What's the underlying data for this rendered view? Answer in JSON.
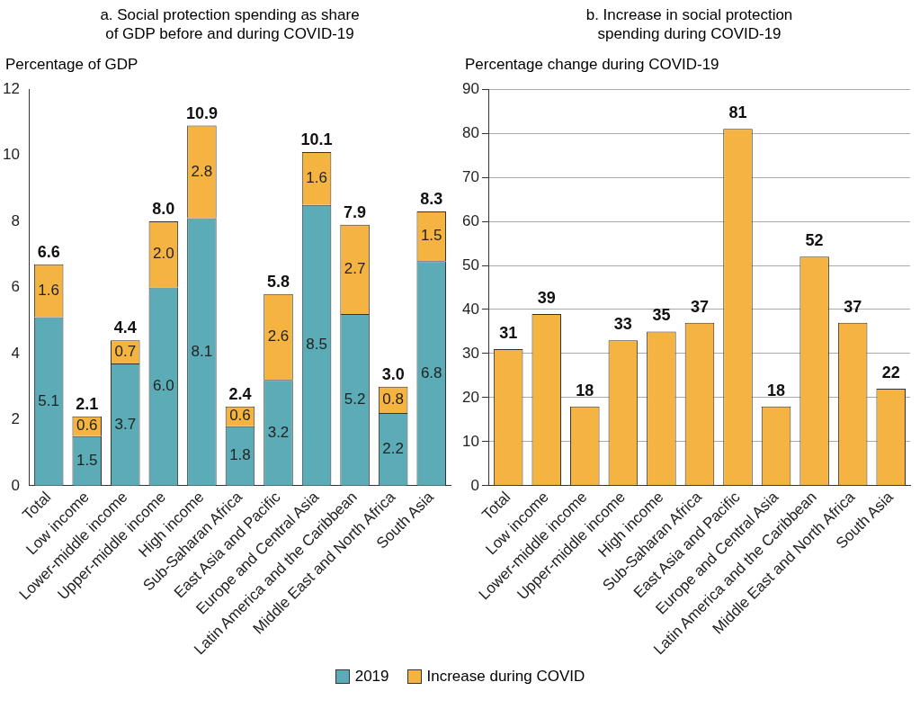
{
  "chart_data": [
    {
      "type": "bar",
      "title": "a. Social protection spending as share\nof GDP before and during COVID-19",
      "ylabel": "Percentage of GDP",
      "categories": [
        "Total",
        "Low income",
        "Lower-middle income",
        "Upper-middle income",
        "High income",
        "Sub-Saharan Africa",
        "East Asia and Pacific",
        "Europe and Central Asia",
        "Latin America and the Caribbean",
        "Middle East and North Africa",
        "South Asia"
      ],
      "series": [
        {
          "name": "2019",
          "color": "#5bacb6",
          "values": [
            5.1,
            1.5,
            3.7,
            6.0,
            8.1,
            1.8,
            3.2,
            8.5,
            5.2,
            2.2,
            6.8
          ],
          "value_labels": [
            "5.1",
            "1.5",
            "3.7",
            "6.0",
            "8.1",
            "1.8",
            "3.2",
            "8.5",
            "5.2",
            "2.2",
            "6.8"
          ]
        },
        {
          "name": "Increase during COVID",
          "color": "#f5b441",
          "values": [
            1.6,
            0.6,
            0.7,
            2.0,
            2.8,
            0.6,
            2.6,
            1.6,
            2.7,
            0.8,
            1.5
          ],
          "value_labels": [
            "1.6",
            "0.6",
            "0.7",
            "2.0",
            "2.8",
            "0.6",
            "2.6",
            "1.6",
            "2.7",
            "0.8",
            "1.5"
          ]
        }
      ],
      "totals": [
        "6.6",
        "2.1",
        "4.4",
        "8.0",
        "10.9",
        "2.4",
        "5.8",
        "10.1",
        "7.9",
        "3.0",
        "8.3"
      ],
      "stacked": true,
      "ylim": [
        0,
        12
      ],
      "yticks": [
        0,
        2,
        4,
        6,
        8,
        10,
        12
      ],
      "grid": false,
      "legend": "bottom"
    },
    {
      "type": "bar",
      "title": "b. Increase in social protection\nspending during COVID-19",
      "ylabel": "Percentage change during COVID-19",
      "categories": [
        "Total",
        "Low income",
        "Lower-middle income",
        "Upper-middle income",
        "High income",
        "Sub-Saharan Africa",
        "East Asia and Pacific",
        "Europe and Central Asia",
        "Latin America and the Caribbean",
        "Middle East and North Africa",
        "South Asia"
      ],
      "values": [
        31,
        39,
        18,
        33,
        35,
        37,
        81,
        18,
        52,
        37,
        22
      ],
      "color": "#f5b441",
      "data_labels": true,
      "ylim": [
        0,
        90
      ],
      "yticks": [
        0,
        10,
        20,
        30,
        40,
        50,
        60,
        70,
        80,
        90
      ],
      "grid": "y"
    }
  ]
}
